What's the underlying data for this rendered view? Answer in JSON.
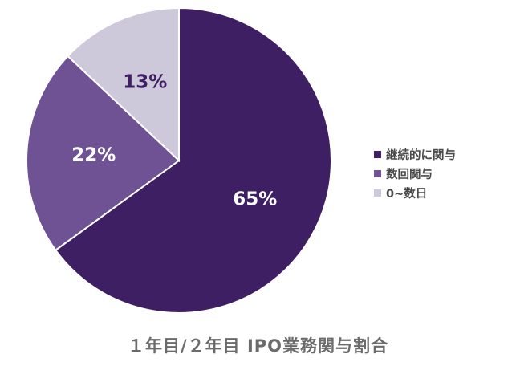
{
  "chart_data": {
    "type": "pie",
    "title": "１年目/２年目 IPO業務関与割合",
    "start_angle": "top",
    "direction": "clockwise",
    "legend_position": "right",
    "slices": [
      {
        "label": "継続的に関与",
        "value": 65,
        "display": "65%",
        "color": "#3f1f63",
        "label_color": "#ffffff"
      },
      {
        "label": "数回関与",
        "value": 22,
        "display": "22%",
        "color": "#6e5294",
        "label_color": "#ffffff"
      },
      {
        "label": "0~数日",
        "value": 13,
        "display": "13%",
        "color": "#cdc8da",
        "label_color": "#3f1f63"
      }
    ]
  }
}
